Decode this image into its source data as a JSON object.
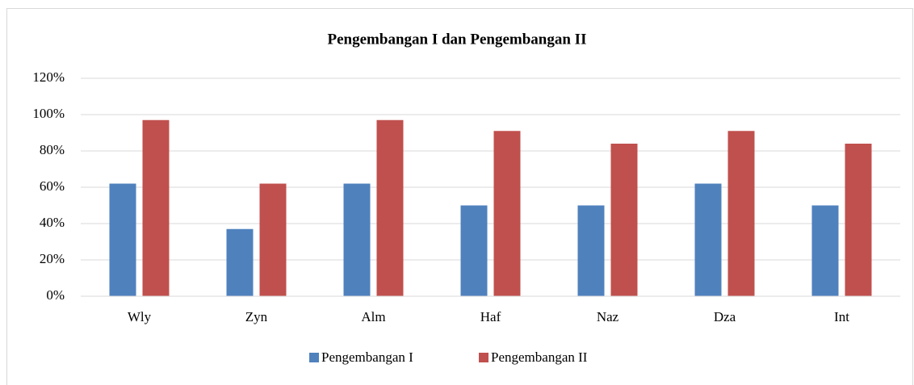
{
  "chart_data": {
    "type": "bar",
    "title": "Pengembangan I dan Pengembangan II",
    "categories": [
      "Wly",
      "Zyn",
      "Alm",
      "Haf",
      "Naz",
      "Dza",
      "Int"
    ],
    "series": [
      {
        "name": "Pengembangan I",
        "color": "#4f81bd",
        "values": [
          62,
          37,
          62,
          50,
          50,
          62,
          50
        ]
      },
      {
        "name": "Pengembangan II",
        "color": "#c0504d",
        "values": [
          97,
          62,
          97,
          91,
          84,
          91,
          84
        ]
      }
    ],
    "ylim": [
      0,
      120
    ],
    "yticks": [
      {
        "value": 0,
        "label": "0%"
      },
      {
        "value": 20,
        "label": "20%"
      },
      {
        "value": 40,
        "label": "40%"
      },
      {
        "value": 60,
        "label": "60%"
      },
      {
        "value": 80,
        "label": "80%"
      },
      {
        "value": 100,
        "label": "100%"
      },
      {
        "value": 120,
        "label": "120%"
      }
    ],
    "grid": true,
    "legend": "bottom"
  }
}
